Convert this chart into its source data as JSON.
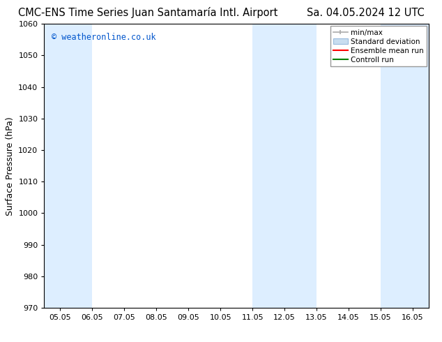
{
  "title": "CMC-ENS Time Series Juan Santamaría Intl. Airport         Sa. 04.05.2024 12 UTC",
  "title_left": "CMC-ENS Time Series Juan Santamaría Intl. Airport",
  "title_right": "Sa. 04.05.2024 12 UTC",
  "ylabel": "Surface Pressure (hPa)",
  "watermark": "© weatheronline.co.uk",
  "watermark_color": "#0055cc",
  "ylim": [
    970,
    1060
  ],
  "yticks": [
    970,
    980,
    990,
    1000,
    1010,
    1020,
    1030,
    1040,
    1050,
    1060
  ],
  "xtick_labels": [
    "05.05",
    "06.05",
    "07.05",
    "08.05",
    "09.05",
    "10.05",
    "11.05",
    "12.05",
    "13.05",
    "14.05",
    "15.05",
    "16.05"
  ],
  "xtick_values": [
    0,
    1,
    2,
    3,
    4,
    5,
    6,
    7,
    8,
    9,
    10,
    11
  ],
  "xlim": [
    -0.5,
    11.5
  ],
  "shaded_bands": [
    {
      "x_start": -0.5,
      "x_end": 1.0,
      "color": "#ddeeff",
      "alpha": 1.0
    },
    {
      "x_start": 6.0,
      "x_end": 8.0,
      "color": "#ddeeff",
      "alpha": 1.0
    },
    {
      "x_start": 10.0,
      "x_end": 11.5,
      "color": "#ddeeff",
      "alpha": 1.0
    }
  ],
  "legend_entries": [
    {
      "label": "min/max",
      "color": "#aaaaaa"
    },
    {
      "label": "Standard deviation",
      "color": "#c8dff0"
    },
    {
      "label": "Ensemble mean run",
      "color": "red"
    },
    {
      "label": "Controll run",
      "color": "green"
    }
  ],
  "background_color": "#ffffff",
  "tick_fontsize": 8,
  "title_fontsize": 10.5,
  "ylabel_fontsize": 9
}
